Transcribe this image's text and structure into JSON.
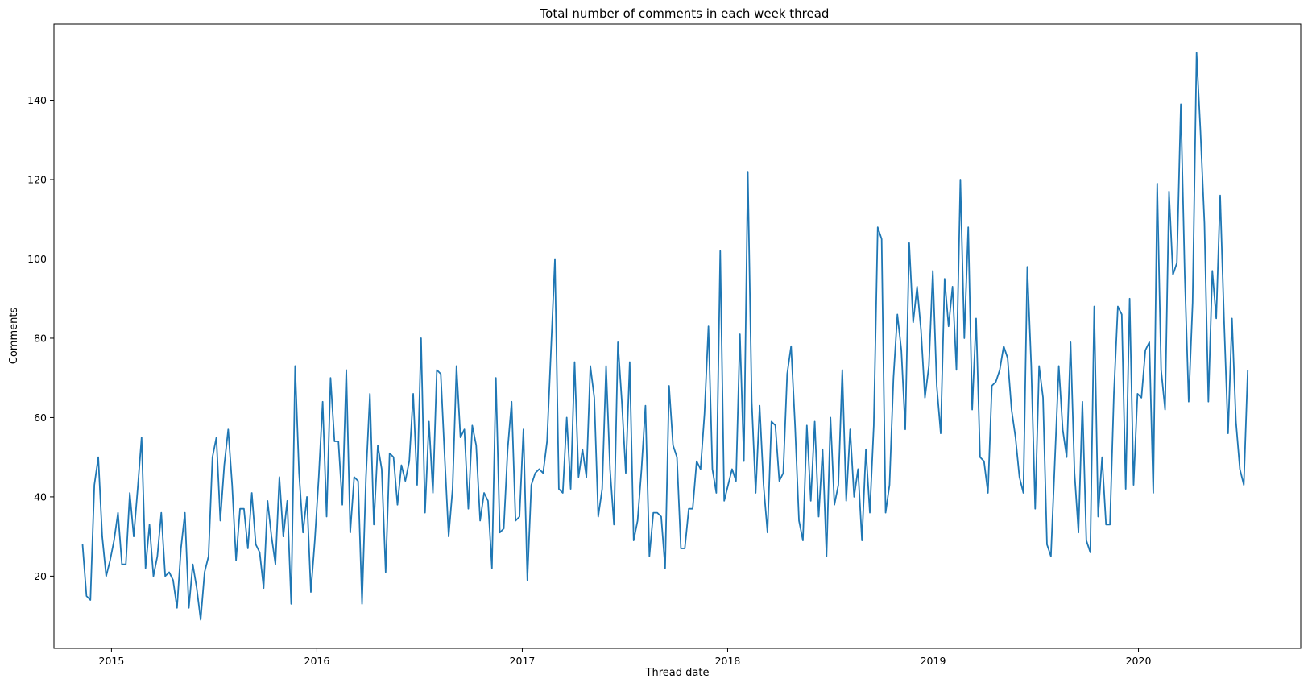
{
  "chart_data": {
    "type": "line",
    "title": "Total number of comments in each week thread",
    "xlabel": "Thread date",
    "ylabel": "Comments",
    "xlim": [
      2014.72,
      2020.79
    ],
    "ylim": [
      1.8,
      159.2
    ],
    "x_ticks": [
      2015,
      2016,
      2017,
      2018,
      2019,
      2020
    ],
    "y_ticks": [
      20,
      40,
      60,
      80,
      100,
      120,
      140
    ],
    "grid": false,
    "legend": "none",
    "line_color": "#1f77b4",
    "start_year": 2014.8592,
    "step_years": 0.019165,
    "series": [
      {
        "values": [
          28,
          15,
          14,
          43,
          50,
          30,
          20,
          24,
          29,
          36,
          23,
          23,
          41,
          30,
          42,
          55,
          22,
          33,
          20,
          25,
          36,
          20,
          21,
          19,
          12,
          27,
          36,
          12,
          23,
          17,
          9,
          21,
          25,
          50,
          55,
          34,
          48,
          57,
          43,
          24,
          37,
          37,
          27,
          41,
          28,
          26,
          17,
          39,
          30,
          23,
          45,
          30,
          39,
          13,
          73,
          46,
          31,
          40,
          16,
          29,
          45,
          64,
          35,
          70,
          54,
          54,
          38,
          72,
          31,
          45,
          44,
          13,
          45,
          66,
          33,
          53,
          47,
          21,
          51,
          50,
          38,
          48,
          44,
          49,
          66,
          43,
          80,
          36,
          59,
          41,
          72,
          71,
          50,
          30,
          42,
          73,
          55,
          57,
          37,
          58,
          53,
          34,
          41,
          39,
          22,
          70,
          31,
          32,
          52,
          64,
          34,
          35,
          57,
          19,
          43,
          46,
          47,
          46,
          54,
          77,
          100,
          42,
          41,
          60,
          42,
          74,
          45,
          52,
          45,
          73,
          65,
          35,
          42,
          73,
          47,
          33,
          79,
          64,
          46,
          74,
          29,
          34,
          47,
          63,
          25,
          36,
          36,
          35,
          22,
          68,
          53,
          50,
          27,
          27,
          37,
          37,
          49,
          47,
          61,
          83,
          47,
          41,
          102,
          39,
          43,
          47,
          44,
          81,
          49,
          122,
          64,
          41,
          63,
          43,
          31,
          59,
          58,
          44,
          46,
          71,
          78,
          58,
          34,
          29,
          58,
          39,
          59,
          35,
          52,
          25,
          60,
          38,
          43,
          72,
          39,
          57,
          40,
          47,
          29,
          52,
          36,
          58,
          108,
          105,
          36,
          43,
          70,
          86,
          77,
          57,
          104,
          84,
          93,
          82,
          65,
          73,
          97,
          68,
          56,
          95,
          83,
          93,
          72,
          120,
          80,
          108,
          62,
          85,
          50,
          49,
          41,
          68,
          69,
          72,
          78,
          75,
          62,
          55,
          45,
          41,
          98,
          73,
          37,
          73,
          65,
          28,
          25,
          49,
          73,
          57,
          50,
          79,
          46,
          31,
          64,
          29,
          26,
          88,
          35,
          50,
          33,
          33,
          66,
          88,
          86,
          42,
          90,
          43,
          66,
          65,
          77,
          79,
          41,
          119,
          72,
          62,
          117,
          96,
          99,
          139,
          96,
          64,
          89,
          152,
          132,
          109,
          64,
          97,
          85,
          116,
          84,
          56,
          85,
          59,
          47,
          43,
          72
        ]
      }
    ]
  }
}
